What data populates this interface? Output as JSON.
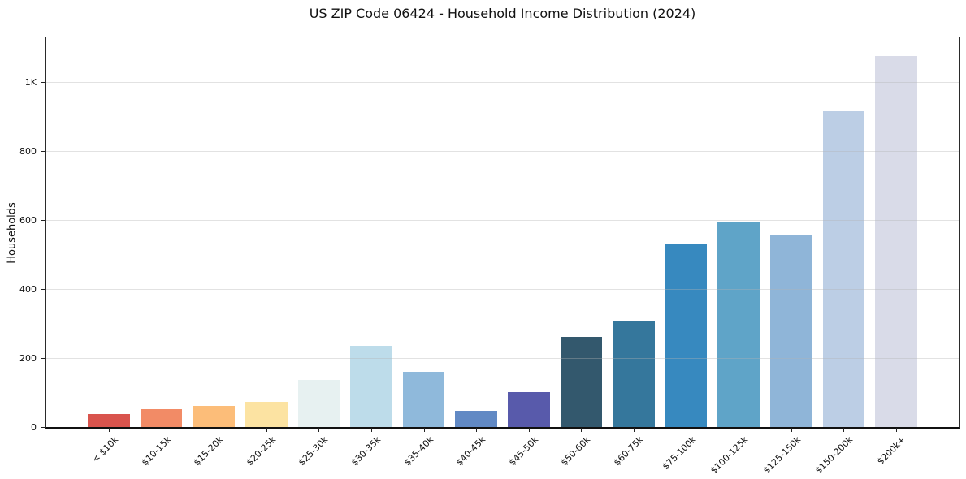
{
  "title": "US ZIP Code 06424 - Household Income Distribution (2024)",
  "chart_data": {
    "type": "bar",
    "title": "US ZIP Code 06424 - Household Income Distribution (2024)",
    "xlabel": "",
    "ylabel": "Households",
    "categories": [
      "< $10k",
      "$10-15k",
      "$15-20k",
      "$20-25k",
      "$25-30k",
      "$30-35k",
      "$35-40k",
      "$40-45k",
      "$45-50k",
      "$50-60k",
      "$60-75k",
      "$75-100k",
      "$100-125k",
      "$125-150k",
      "$150-200k",
      "$200k+"
    ],
    "values": [
      41,
      55,
      63,
      75,
      139,
      237,
      162,
      50,
      103,
      263,
      309,
      535,
      596,
      557,
      919,
      1078
    ],
    "bar_colors": [
      "#d9544d",
      "#f28b66",
      "#fcbd79",
      "#fce3a2",
      "#e7f1f1",
      "#bddcea",
      "#8fb9db",
      "#6189c4",
      "#585aab",
      "#33586d",
      "#35779c",
      "#3789bf",
      "#5fa4c8",
      "#8fb5d8",
      "#bccee5",
      "#d9dbe8"
    ],
    "ylim": [
      0,
      1132
    ],
    "yticks": [
      {
        "value": 0,
        "label": "0"
      },
      {
        "value": 200,
        "label": "200"
      },
      {
        "value": 400,
        "label": "400"
      },
      {
        "value": 600,
        "label": "600"
      },
      {
        "value": 800,
        "label": "800"
      },
      {
        "value": 1000,
        "label": "1K"
      }
    ],
    "gridline_values": [
      200,
      400,
      600,
      800,
      1000
    ],
    "grid": "horizontal",
    "legend": "none",
    "background_color": "#ffffff",
    "gridline_color": "#ececec",
    "spine_color": "#2a2a2a",
    "text_color": "#111111"
  }
}
